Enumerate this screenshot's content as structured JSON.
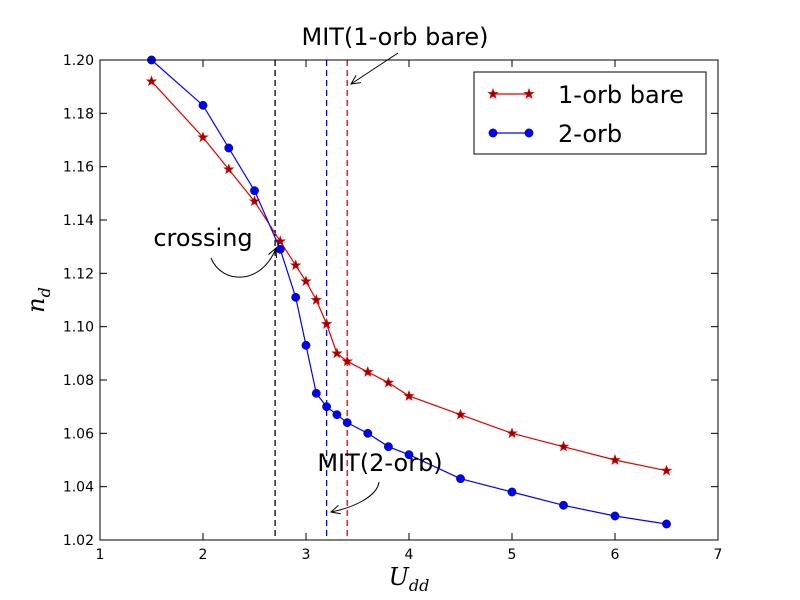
{
  "chart_data": {
    "type": "line",
    "xlabel": "U",
    "xlabel_sub": "dd",
    "ylabel": "n",
    "ylabel_sub": "d",
    "xlim": [
      1,
      7
    ],
    "ylim": [
      1.02,
      1.2
    ],
    "xticks": [
      1,
      2,
      3,
      4,
      5,
      6,
      7
    ],
    "xtick_labels": [
      "1",
      "2",
      "3",
      "4",
      "5",
      "6",
      "7"
    ],
    "yticks": [
      1.02,
      1.04,
      1.06,
      1.08,
      1.1,
      1.12,
      1.14,
      1.16,
      1.18,
      1.2
    ],
    "ytick_labels": [
      "1.02",
      "1.04",
      "1.06",
      "1.08",
      "1.10",
      "1.12",
      "1.14",
      "1.16",
      "1.18",
      "1.20"
    ],
    "grid": false,
    "legend_position": "top-right",
    "series": [
      {
        "name": "1-orb bare",
        "color": "#e00000",
        "marker": "star",
        "marker_fill": "#8b0000",
        "x": [
          1.5,
          2.0,
          2.25,
          2.5,
          2.75,
          2.9,
          3.0,
          3.1,
          3.2,
          3.3,
          3.4,
          3.6,
          3.8,
          4.0,
          4.5,
          5.0,
          5.5,
          6.0,
          6.5
        ],
        "y": [
          1.192,
          1.171,
          1.159,
          1.147,
          1.132,
          1.123,
          1.117,
          1.11,
          1.101,
          1.09,
          1.087,
          1.083,
          1.079,
          1.074,
          1.067,
          1.06,
          1.055,
          1.05,
          1.046
        ]
      },
      {
        "name": "2-orb",
        "color": "#0000ff",
        "marker": "circle",
        "marker_fill": "#0000ff",
        "x": [
          1.5,
          2.0,
          2.25,
          2.5,
          2.75,
          2.9,
          3.0,
          3.1,
          3.2,
          3.3,
          3.4,
          3.6,
          3.8,
          4.0,
          4.5,
          5.0,
          5.5,
          6.0,
          6.5
        ],
        "y": [
          1.2,
          1.183,
          1.167,
          1.151,
          1.129,
          1.111,
          1.093,
          1.075,
          1.07,
          1.067,
          1.064,
          1.06,
          1.055,
          1.052,
          1.043,
          1.038,
          1.033,
          1.029,
          1.026
        ]
      }
    ],
    "vlines": [
      {
        "x": 2.7,
        "color": "#000000"
      },
      {
        "x": 3.2,
        "color": "#0000ff"
      },
      {
        "x": 3.4,
        "color": "#e00000"
      }
    ],
    "annotations": [
      {
        "text": "MIT(1-orb bare)"
      },
      {
        "text": "crossing"
      },
      {
        "text": "MIT(2-orb)"
      }
    ]
  }
}
